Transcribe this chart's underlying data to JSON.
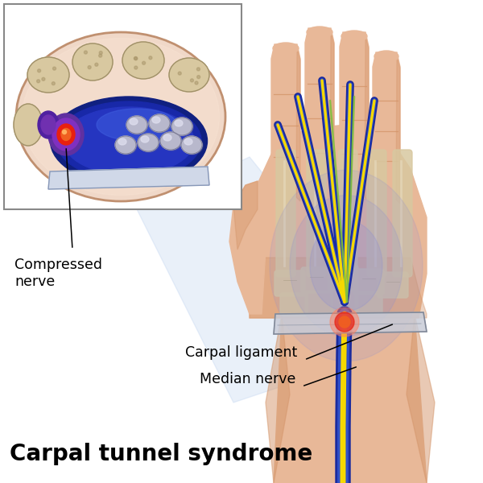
{
  "title": "Carpal tunnel syndrome",
  "title_fontsize": 20,
  "label_compressed_nerve": "Compressed\nnerve",
  "label_carpal_ligament": "Carpal ligament",
  "label_median_nerve": "Median nerve",
  "bg_color": "#ffffff",
  "skin_light": "#e8b898",
  "skin_mid": "#d4956a",
  "skin_dark": "#b87550",
  "bone_light": "#d8c8a0",
  "bone_dark": "#a8956a",
  "nerve_yellow": "#f5d800",
  "nerve_blue_dark": "#1a2b9e",
  "nerve_blue_mid": "#3050c8",
  "nerve_green": "#80c040",
  "tendon_gray": "#b8b8cc",
  "tendon_highlight": "#e0e0f0",
  "ligament_gray": "#c8ccd8",
  "red_hot": "#e82010",
  "orange_hot": "#f06020",
  "inset_bg": "#f0d8c8",
  "inset_border": "#888888",
  "tunnel_purple": "#6030a0",
  "tunnel_blue": "#2040c0",
  "beam_blue": "#c0d4f0"
}
